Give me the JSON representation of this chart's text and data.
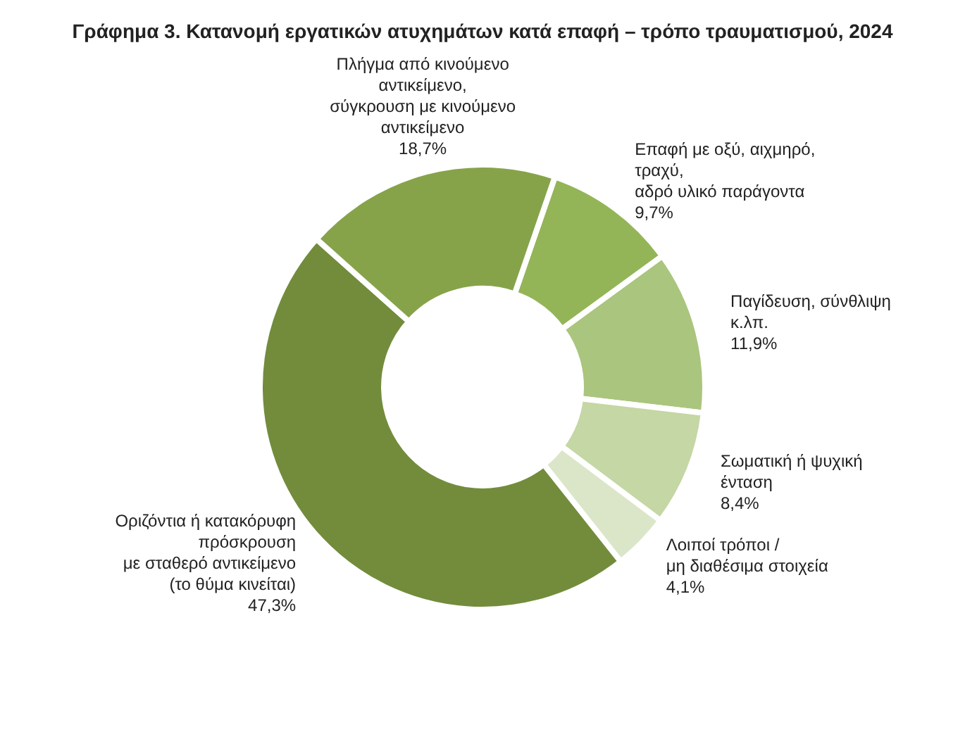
{
  "chart_data": {
    "type": "donut",
    "title": "Γράφημα 3. Κατανομή εργατικών ατυχημάτων κατά επαφή – τρόπο τραυματισμού, 2024",
    "categories": [
      "Επαφή με οξύ, αιχμηρό,\nτραχύ,\nαδρό υλικό παράγοντα",
      "Παγίδευση, σύνθλιψη\nκ.λπ.",
      "Σωματική ή ψυχική\nένταση",
      "Λοιποί τρόποι /\nμη διαθέσιμα στοιχεία",
      "Οριζόντια ή κατακόρυφη\nπρόσκρουση\nμε σταθερό αντικείμενο\n(το θύμα κινείται)",
      "Πλήγμα από κινούμενο\nαντικείμενο,\nσύγκρουση με κινούμενο\nαντικείμενο"
    ],
    "values": [
      9.7,
      11.9,
      8.4,
      4.1,
      47.3,
      18.7
    ],
    "value_labels": [
      "9,7%",
      "11,9%",
      "8,4%",
      "4,1%",
      "47,3%",
      "18,7%"
    ],
    "colors": [
      "#93b557",
      "#aac57d",
      "#c4d7a4",
      "#dbe6c9",
      "#728c3c",
      "#86a34a"
    ],
    "legend": false
  }
}
